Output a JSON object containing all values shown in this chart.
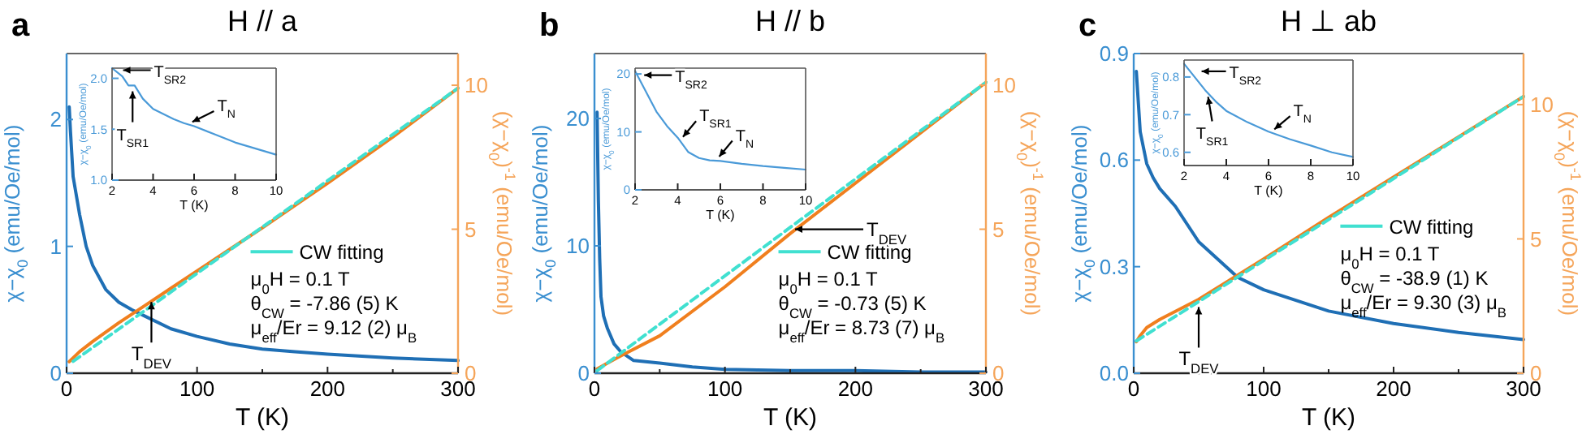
{
  "chart_data": [
    {
      "type": "line",
      "title": "H // a",
      "xlabel": "T (K)",
      "ylabel": "χ−χ$_{0}$ (emu/Oe/mol)",
      "y2label": "(χ−χ$_{0}$)$^{-1}$ (emu/Oe/mol)",
      "xlim": [
        0,
        300
      ],
      "xticks": [
        0,
        {
          "value": 50,
          "label": null
        },
        100,
        {
          "value": 150,
          "label": null
        },
        200,
        {
          "value": 250,
          "label": null
        },
        300
      ],
      "ylim": [
        0,
        2.52
      ],
      "yticks": [
        0,
        1,
        2
      ],
      "y2lim": [
        0,
        11.1
      ],
      "y2ticks": [
        0,
        5,
        10
      ],
      "legend": "bottom right",
      "annotations": [
        "a",
        "μ$_{0}$H = 0.1 T",
        "θ$_{CW}$ = -7.86 (5) K",
        "μ$_{eff}$/Er = 9.12 (2) μ$_{B}$",
        {
          "text": "T$_{DEV}$",
          "x": 65,
          "y": 0.6
        }
      ],
      "series": [
        {
          "color": "#1f6fb5",
          "x": [
            2,
            3,
            5,
            10,
            15,
            20,
            30,
            40,
            50,
            60,
            80,
            100,
            125,
            150,
            175,
            200,
            250,
            300
          ],
          "values": [
            2.1,
            1.9,
            1.55,
            1.25,
            1.0,
            0.85,
            0.66,
            0.56,
            0.5,
            0.45,
            0.35,
            0.29,
            0.23,
            0.19,
            0.17,
            0.15,
            0.12,
            0.1
          ]
        },
        {
          "color": "#f07f1e",
          "axis": "y2",
          "x": [
            2,
            10,
            20,
            40,
            60,
            80,
            100,
            150,
            200,
            250,
            300
          ],
          "values": [
            0.4,
            0.75,
            1.1,
            1.75,
            2.35,
            2.95,
            3.55,
            5.05,
            6.6,
            8.2,
            9.9
          ]
        },
        {
          "name": "CW fitting",
          "color": "#40e0d0",
          "axis": "y2",
          "line_style": "dashed",
          "x": [
            5,
            300
          ],
          "values": [
            0.41,
            9.9
          ]
        }
      ]
    },
    {
      "type": "line",
      "xlabel": "T (K)",
      "ylabel": "χ−χ$_{0}$ (emu/Oe/mol)",
      "xlim": [
        2,
        10
      ],
      "xticks": [
        2,
        4,
        6,
        8,
        10
      ],
      "ylim": [
        1.0,
        2.1
      ],
      "yticks": [
        {
          "value": 1,
          "label": "1.0"
        },
        1.5,
        {
          "value": 2,
          "label": "2.0"
        }
      ],
      "annotations": [
        {
          "text": "T$_{SR2}$",
          "x": 2.3,
          "y": 2.08
        },
        {
          "text": "T$_{SR1}$",
          "x": 3.0,
          "y": 1.92
        },
        {
          "text": "T$_{N}$",
          "x": 5.7,
          "y": 1.55
        }
      ],
      "series": [
        {
          "color": "#4a9ad8",
          "x": [
            2,
            2.5,
            2.8,
            3.1,
            3.5,
            4,
            5,
            5.5,
            6,
            7,
            8,
            9,
            10
          ],
          "values": [
            2.1,
            2.02,
            1.93,
            1.93,
            1.8,
            1.7,
            1.6,
            1.56,
            1.53,
            1.45,
            1.37,
            1.31,
            1.25
          ]
        }
      ]
    },
    {
      "type": "line",
      "title": "H // b",
      "xlabel": "T (K)",
      "ylabel": "χ−χ$_{0}$ (emu/Oe/mol)",
      "y2label": "(χ−χ$_{0}$)$^{-1}$ (emu/Oe/mol)",
      "xlim": [
        0,
        300
      ],
      "xticks": [
        0,
        {
          "value": 50,
          "label": null
        },
        100,
        {
          "value": 150,
          "label": null
        },
        200,
        {
          "value": 250,
          "label": null
        },
        300
      ],
      "ylim": [
        0,
        25.1
      ],
      "yticks": [
        0,
        10,
        20
      ],
      "y2lim": [
        0,
        11.1
      ],
      "y2ticks": [
        0,
        5,
        10
      ],
      "legend": "bottom right",
      "annotations": [
        "b",
        "μ$_{0}$H = 0.1 T",
        "θ$_{CW}$ = -0.73 (5) K",
        "μ$_{eff}$/Er = 8.73 (7) μ$_{B}$",
        {
          "text": "T$_{DEV}$",
          "x": 150,
          "y": 11.3
        }
      ],
      "series": [
        {
          "color": "#1f6fb5",
          "x": [
            2,
            3,
            4,
            5,
            7,
            10,
            15,
            20,
            30,
            50,
            75,
            100,
            150,
            200,
            250,
            300
          ],
          "values": [
            20.5,
            13.5,
            9,
            6,
            4.5,
            3.5,
            2.3,
            1.7,
            1.0,
            0.8,
            0.5,
            0.3,
            0.2,
            0.2,
            0.1,
            0.1
          ]
        },
        {
          "color": "#f07f1e",
          "axis": "y2",
          "x": [
            2,
            10,
            20,
            50,
            100,
            150,
            200,
            250,
            300
          ],
          "values": [
            0.15,
            0.35,
            0.6,
            1.3,
            3.0,
            4.85,
            6.6,
            8.35,
            10.1
          ]
        },
        {
          "name": "CW fitting",
          "color": "#40e0d0",
          "axis": "y2",
          "line_style": "dashed",
          "x": [
            2,
            300
          ],
          "values": [
            0.09,
            10.1
          ]
        }
      ]
    },
    {
      "type": "line",
      "xlabel": "T (K)",
      "ylabel": "χ−χ$_{0}$ (emu/Oe/mol)",
      "xlim": [
        2,
        10
      ],
      "xticks": [
        2,
        4,
        6,
        8,
        10
      ],
      "ylim": [
        0,
        21
      ],
      "yticks": [
        0,
        10,
        20
      ],
      "annotations": [
        {
          "text": "T$_{SR2}$",
          "x": 2.2,
          "y": 19.8
        },
        {
          "text": "T$_{SR1}$",
          "x": 4.1,
          "y": 8.5
        },
        {
          "text": "T$_{N}$",
          "x": 5.8,
          "y": 5.1
        }
      ],
      "series": [
        {
          "color": "#4a9ad8",
          "x": [
            2,
            2.5,
            3,
            3.5,
            4,
            4.5,
            5,
            5.5,
            6,
            7,
            8,
            9,
            10
          ],
          "values": [
            20.5,
            17,
            13.5,
            11,
            9,
            6.5,
            5.5,
            5.1,
            5,
            4.5,
            4.1,
            3.8,
            3.5
          ]
        }
      ]
    },
    {
      "type": "line",
      "title": "H ⊥ ab",
      "xlabel": "T (K)",
      "ylabel": "χ−χ$_{0}$ (emu/Oe/mol)",
      "y2label": "(χ−χ$_{0}$)$^{-1}$ (emu/Oe/mol)",
      "xlim": [
        0,
        300
      ],
      "xticks": [
        0,
        {
          "value": 50,
          "label": null
        },
        100,
        {
          "value": 150,
          "label": null
        },
        200,
        {
          "value": 250,
          "label": null
        },
        300
      ],
      "ylim": [
        0,
        0.9
      ],
      "yticks": [
        {
          "value": 0,
          "label": "0.0"
        },
        0.3,
        0.6,
        0.9
      ],
      "y2lim": [
        0,
        11.9
      ],
      "y2ticks": [
        0,
        5,
        10
      ],
      "legend": "right",
      "annotations": [
        "c",
        "μ$_{0}$H = 0.1 T",
        "θ$_{CW}$ = -38.9 (1) K",
        "μ$_{eff}$/Er = 9.30 (3) μ$_{B}$",
        {
          "text": "T$_{DEV}$",
          "x": 50,
          "y": 0.2
        }
      ],
      "series": [
        {
          "color": "#1f6fb5",
          "x": [
            2,
            5,
            10,
            15,
            20,
            32,
            50,
            80,
            100,
            150,
            200,
            250,
            300
          ],
          "values": [
            0.85,
            0.68,
            0.59,
            0.55,
            0.52,
            0.47,
            0.37,
            0.27,
            0.235,
            0.175,
            0.14,
            0.115,
            0.095
          ]
        },
        {
          "color": "#f07f1e",
          "axis": "y2",
          "x": [
            2,
            5,
            10,
            20,
            50,
            100,
            150,
            200,
            250,
            300
          ],
          "values": [
            1.17,
            1.4,
            1.7,
            2.0,
            2.75,
            4.25,
            5.8,
            7.3,
            8.8,
            10.3
          ]
        },
        {
          "name": "CW fitting",
          "color": "#40e0d0",
          "axis": "y2",
          "line_style": "dashed",
          "x": [
            2,
            300
          ],
          "values": [
            1.2,
            10.3
          ]
        }
      ]
    },
    {
      "type": "line",
      "xlabel": "T (K)",
      "ylabel": "χ−χ$_{0}$ (emu/Oe/mol)",
      "xlim": [
        2,
        10
      ],
      "xticks": [
        2,
        4,
        6,
        8,
        10
      ],
      "ylim": [
        0.565,
        0.845
      ],
      "yticks": [
        0.6,
        0.7,
        0.8
      ],
      "annotations": [
        {
          "text": "T$_{SR2}$",
          "x": 2.6,
          "y": 0.815
        },
        {
          "text": "T$_{SR1}$",
          "x": 3.1,
          "y": 0.76
        },
        {
          "text": "T$_{N}$",
          "x": 6.1,
          "y": 0.653
        }
      ],
      "series": [
        {
          "color": "#4a9ad8",
          "x": [
            2,
            2.5,
            3,
            3.5,
            4,
            5,
            6,
            7,
            8,
            9,
            10
          ],
          "values": [
            0.835,
            0.8,
            0.765,
            0.735,
            0.71,
            0.68,
            0.655,
            0.635,
            0.618,
            0.6,
            0.588
          ]
        }
      ]
    }
  ]
}
